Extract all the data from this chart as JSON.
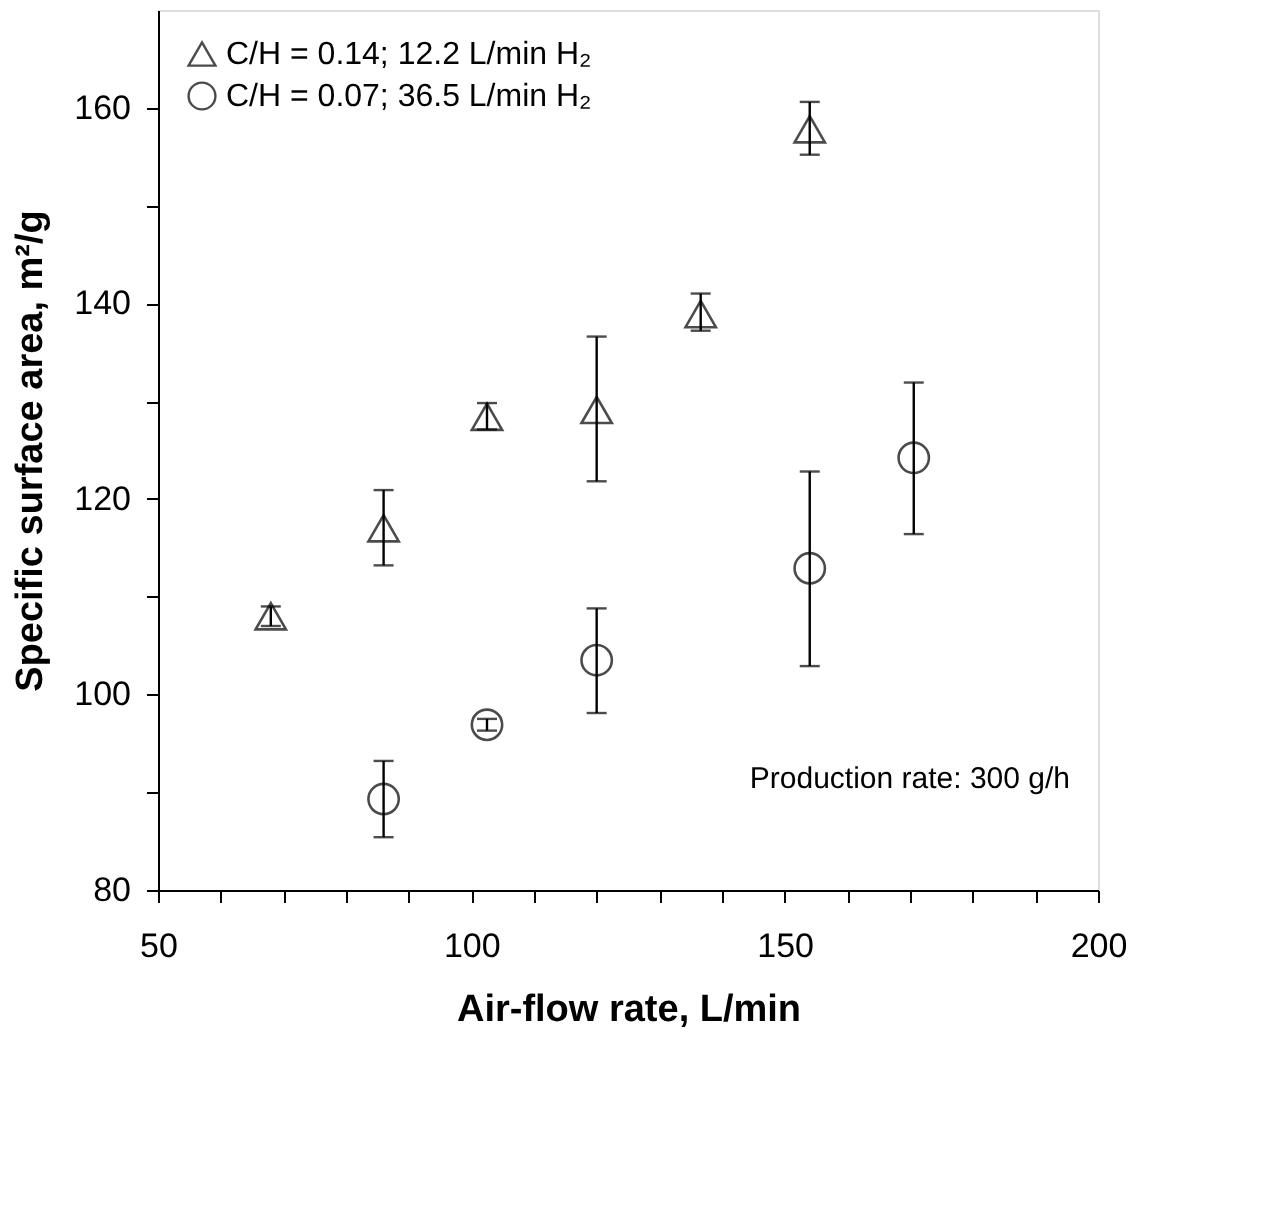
{
  "chart_data": {
    "type": "scatter",
    "xlabel": "Air-flow rate, L/min",
    "ylabel": "Specific surface area, m²/g",
    "xlim": [
      50,
      200
    ],
    "ylim": [
      80,
      170
    ],
    "xticks": [
      50,
      {
        "value": 60,
        "label": null
      },
      {
        "value": 70,
        "label": null
      },
      {
        "value": 80,
        "label": null
      },
      {
        "value": 90,
        "label": null
      },
      100,
      {
        "value": 110,
        "label": null
      },
      {
        "value": 120,
        "label": null
      },
      {
        "value": 130,
        "label": null
      },
      {
        "value": 140,
        "label": null
      },
      150,
      {
        "value": 160,
        "label": null
      },
      {
        "value": 170,
        "label": null
      },
      {
        "value": 180,
        "label": null
      },
      {
        "value": 190,
        "label": null
      },
      200
    ],
    "yticks": [
      80,
      {
        "value": 90,
        "label": null
      },
      100,
      {
        "value": 110,
        "label": null
      },
      120,
      {
        "value": 130,
        "label": null
      },
      140,
      {
        "value": 150,
        "label": null
      },
      160
    ],
    "legend": "top left",
    "grid": false,
    "series": [
      {
        "name": "C/H = 0.14; 12.2 L/min H₂",
        "color": "#000000",
        "marker": "triangle",
        "x": [
          68,
          86,
          102.5,
          120,
          136.6,
          154
        ],
        "values": [
          108,
          117,
          128.4,
          129.1,
          138.9,
          157.8
        ],
        "errors": [
          1,
          [
            113.2,
            120.9
          ],
          [
            127.1,
            129.8
          ],
          [
            121.8,
            136.6
          ],
          [
            137.2,
            141
          ],
          [
            155.2,
            160.6
          ]
        ]
      },
      {
        "name": "C/H = 0.07; 36.5 L/min H₂",
        "color": "#000000",
        "marker": "circle",
        "x": [
          86,
          102.5,
          120,
          154,
          170.6
        ],
        "values": [
          89.3,
          96.9,
          103.5,
          112.9,
          124.2
        ],
        "errors": [
          [
            85.4,
            93.2
          ],
          0.6,
          [
            98.1,
            108.8
          ],
          [
            102.9,
            122.8
          ],
          [
            116.4,
            131.9
          ]
        ]
      }
    ],
    "annotations": [
      "Production rate: 300 g/h"
    ]
  }
}
